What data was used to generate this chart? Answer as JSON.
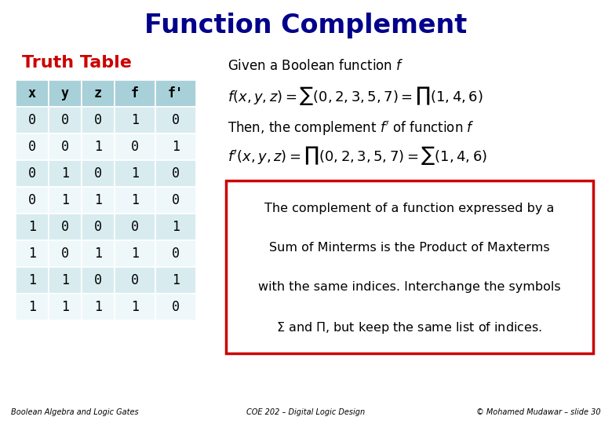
{
  "title": "Function Complement",
  "title_color": "#00008B",
  "title_bg_color": "#C8C8FF",
  "title_fontsize": 24,
  "subtitle": "Truth Table",
  "subtitle_color": "#CC0000",
  "subtitle_fontsize": 16,
  "table_headers": [
    "x",
    "y",
    "z",
    "f",
    "f'"
  ],
  "table_data": [
    [
      0,
      0,
      0,
      1,
      0
    ],
    [
      0,
      0,
      1,
      0,
      1
    ],
    [
      0,
      1,
      0,
      1,
      0
    ],
    [
      0,
      1,
      1,
      1,
      0
    ],
    [
      1,
      0,
      0,
      0,
      1
    ],
    [
      1,
      0,
      1,
      1,
      0
    ],
    [
      1,
      1,
      0,
      0,
      1
    ],
    [
      1,
      1,
      1,
      1,
      0
    ]
  ],
  "table_header_bg": "#A8D0D8",
  "table_row_bg_even": "#D8ECF0",
  "table_row_bg_odd": "#EEF8FA",
  "table_font_family": "monospace",
  "table_fontsize": 12,
  "box_text_lines": [
    "The complement of a function expressed by a",
    "Sum of Minterms is the Product of Maxterms",
    "with the same indices. Interchange the symbols",
    "$\\Sigma$ and $\\Pi$, but keep the same list of indices."
  ],
  "box_border_color": "#CC0000",
  "footer_left": "Boolean Algebra and Logic Gates",
  "footer_center": "COE 202 – Digital Logic Design",
  "footer_right": "© Mohamed Mudawar – slide 30",
  "bg_color": "#FFFFFF"
}
